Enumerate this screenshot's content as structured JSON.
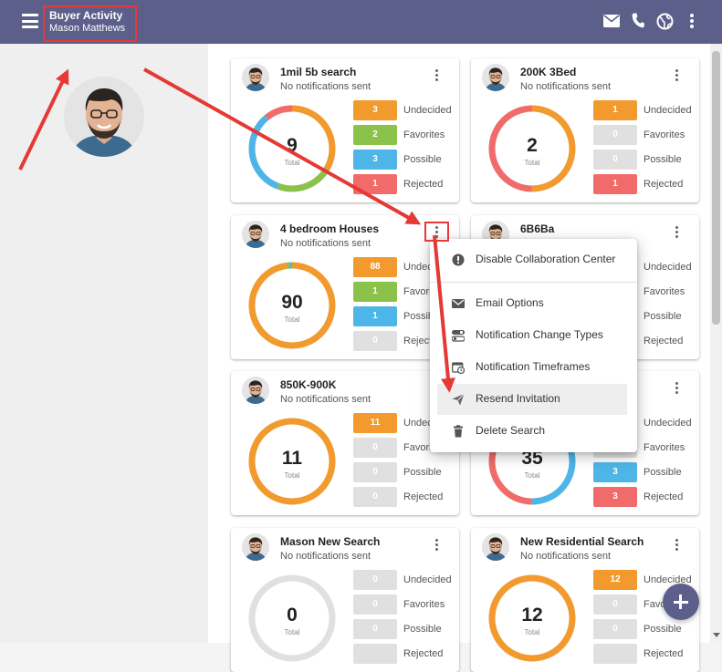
{
  "header": {
    "title": "Buyer Activity",
    "subtitle": "Mason Matthews",
    "icons": [
      "menu-icon",
      "mail-icon",
      "phone-icon",
      "globe-icon",
      "more-vert-icon"
    ]
  },
  "colors": {
    "header": "#5b5f8a",
    "undecided": "#f29a2e",
    "favorites": "#8bc34a",
    "possible": "#4db5e8",
    "rejected": "#f26b6b",
    "empty": "#e0e0e0",
    "annotation": "#e53935"
  },
  "stat_labels": {
    "undecided": "Undecided",
    "favorites": "Favorites",
    "possible": "Possible",
    "rejected": "Rejected"
  },
  "total_label": "Total",
  "cards": [
    {
      "title": "1mil 5b search",
      "subtitle": "No notifications sent",
      "total": "9",
      "undecided": "3",
      "favorites": "2",
      "possible": "3",
      "rejected": "1"
    },
    {
      "title": "200K 3Bed",
      "subtitle": "No notifications sent",
      "total": "2",
      "undecided": "1",
      "favorites": "0",
      "possible": "0",
      "rejected": "1"
    },
    {
      "title": "4 bedroom Houses",
      "subtitle": "No notifications sent",
      "total": "90",
      "undecided": "88",
      "favorites": "1",
      "possible": "1",
      "rejected": "0"
    },
    {
      "title": "6B6Ba",
      "subtitle": "",
      "total": "",
      "undecided": "",
      "favorites": "",
      "possible": "",
      "rejected": ""
    },
    {
      "title": "850K-900K",
      "subtitle": "No notifications sent",
      "total": "11",
      "undecided": "11",
      "favorites": "0",
      "possible": "0",
      "rejected": "0"
    },
    {
      "title": "",
      "subtitle": "",
      "total": "35",
      "undecided": "",
      "favorites": "",
      "possible": "3",
      "rejected": "3"
    },
    {
      "title": "Mason New Search",
      "subtitle": "No notifications sent",
      "total": "0",
      "undecided": "0",
      "favorites": "0",
      "possible": "0",
      "rejected": ""
    },
    {
      "title": "New Residential Search",
      "subtitle": "No notifications sent",
      "total": "12",
      "undecided": "12",
      "favorites": "0",
      "possible": "0",
      "rejected": ""
    }
  ],
  "context_menu": {
    "items": [
      {
        "label": "Disable Collaboration Center",
        "icon": "info-icon"
      },
      {
        "label": "Email Options",
        "icon": "mail-icon"
      },
      {
        "label": "Notification Change Types",
        "icon": "toggle-icon"
      },
      {
        "label": "Notification Timeframes",
        "icon": "calendar-clock-icon"
      },
      {
        "label": "Resend Invitation",
        "icon": "send-icon"
      },
      {
        "label": "Delete Search",
        "icon": "trash-icon"
      }
    ]
  },
  "fab": {
    "icon": "plus-icon"
  }
}
